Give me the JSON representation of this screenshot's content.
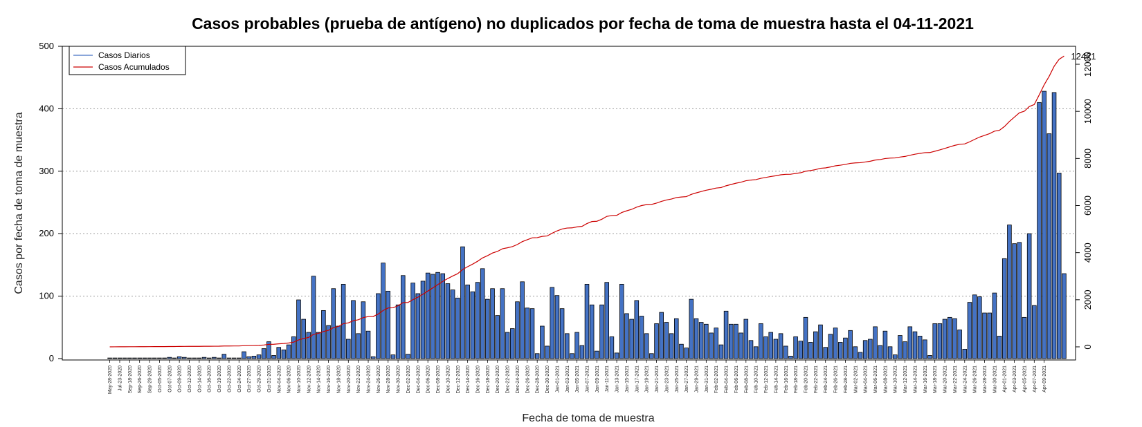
{
  "chart_data": {
    "type": "bar",
    "title": "Casos probables (prueba de antígeno) no duplicados por fecha de toma de muestra hasta el 04-11-2021",
    "xlabel": "Fecha de toma de muestra",
    "ylabel": "Casos por fecha de toma de muestra",
    "ylim": [
      0,
      500
    ],
    "y_ticks": [
      0,
      100,
      200,
      300,
      400,
      500
    ],
    "y2lim": [
      -200,
      12800
    ],
    "y2_ticks": [
      0,
      2000,
      4000,
      6000,
      8000,
      10000,
      12000
    ],
    "grid": "horizontal dotted",
    "legend_position": "top-left",
    "legend": [
      "Casos Diarios",
      "Casos Acumulados"
    ],
    "colors": {
      "bars": "#4472C4",
      "bar_border": "#000000",
      "line": "#CC0000",
      "grid": "#999999"
    },
    "end_label": "12421",
    "x_tick_labels": [
      "May-28-2020",
      "Jul-23-2020",
      "Sep-18-2020",
      "Sep-26-2020",
      "Sep-29-2020",
      "Oct-05-2020",
      "Oct-07-2020",
      "Oct-09-2020",
      "Oct-12-2020",
      "Oct-14-2020",
      "Oct-16-2020",
      "Oct-19-2020",
      "Oct-22-2020",
      "Oct-24-2020",
      "Oct-27-2020",
      "Oct-29-2020",
      "Oct-31-2020",
      "Nov-04-2020",
      "Nov-06-2020",
      "Nov-10-2020",
      "Nov-12-2020",
      "Nov-14-2020",
      "Nov-16-2020",
      "Nov-18-2020",
      "Nov-20-2020",
      "Nov-22-2020",
      "Nov-24-2020",
      "Nov-26-2020",
      "Nov-28-2020",
      "Nov-30-2020",
      "Dec-02-2020",
      "Dec-04-2020",
      "Dec-06-2020",
      "Dec-08-2020",
      "Dec-10-2020",
      "Dec-12-2020",
      "Dec-14-2020",
      "Dec-16-2020",
      "Dec-18-2020",
      "Dec-20-2020",
      "Dec-22-2020",
      "Dec-24-2020",
      "Dec-26-2020",
      "Dec-28-2020",
      "Dec-30-2020",
      "Jan-01-2021",
      "Jan-03-2021",
      "Jan-05-2021",
      "Jan-07-2021",
      "Jan-09-2021",
      "Jan-11-2021",
      "Jan-13-2021",
      "Jan-15-2021",
      "Jan-17-2021",
      "Jan-19-2021",
      "Jan-21-2021",
      "Jan-23-2021",
      "Jan-25-2021",
      "Jan-27-2021",
      "Jan-29-2021",
      "Jan-31-2021",
      "Feb-02-2021",
      "Feb-04-2021",
      "Feb-06-2021",
      "Feb-08-2021",
      "Feb-10-2021",
      "Feb-12-2021",
      "Feb-14-2021",
      "Feb-16-2021",
      "Feb-18-2021",
      "Feb-20-2021",
      "Feb-22-2021",
      "Feb-24-2021",
      "Feb-26-2021",
      "Feb-28-2021",
      "Mar-02-2021",
      "Mar-04-2021",
      "Mar-06-2021",
      "Mar-08-2021",
      "Mar-10-2021",
      "Mar-12-2021",
      "Mar-14-2021",
      "Mar-16-2021",
      "Mar-18-2021",
      "Mar-20-2021",
      "Mar-22-2021",
      "Mar-24-2021",
      "Mar-26-2021",
      "Mar-28-2021",
      "Mar-30-2021",
      "Apr-01-2021",
      "Apr-03-2021",
      "Apr-05-2021",
      "Apr-07-2021",
      "Apr-09-2021"
    ],
    "daily": [
      1,
      1,
      1,
      1,
      1,
      1,
      1,
      1,
      1,
      1,
      1,
      1,
      2,
      1,
      3,
      2,
      1,
      1,
      1,
      2,
      1,
      2,
      1,
      7,
      1,
      1,
      1,
      11,
      3,
      4,
      6,
      16,
      27,
      5,
      18,
      14,
      22,
      35,
      94,
      63,
      42,
      132,
      42,
      77,
      53,
      112,
      52,
      119,
      31,
      93,
      40,
      91,
      44,
      3,
      104,
      153,
      108,
      6,
      86,
      133,
      7,
      121,
      104,
      124,
      137,
      135,
      138,
      136,
      120,
      110,
      97,
      179,
      118,
      107,
      122,
      144,
      95,
      112,
      69,
      112,
      42,
      48,
      91,
      123,
      81,
      80,
      8,
      52,
      20,
      114,
      101,
      80,
      40,
      8,
      42,
      21,
      119,
      86,
      12,
      86,
      122,
      35,
      9,
      119,
      72,
      63,
      93,
      68,
      40,
      8,
      56,
      74,
      58,
      40,
      64,
      23,
      17,
      95,
      64,
      58,
      55,
      41,
      49,
      22,
      76,
      55,
      55,
      41,
      63,
      29,
      19,
      56,
      35,
      42,
      31,
      40,
      20,
      4,
      35,
      28,
      66,
      26,
      43,
      54,
      18,
      39,
      49,
      26,
      33,
      45,
      19,
      10,
      29,
      31,
      51,
      21,
      44,
      19,
      6,
      37,
      27,
      51,
      43,
      36,
      30,
      5,
      56,
      56,
      63,
      66,
      64,
      46,
      15,
      90,
      102,
      99,
      73,
      73,
      105,
      36,
      160,
      214,
      184,
      186,
      66,
      200,
      85,
      410,
      428,
      360,
      426,
      297,
      136
    ]
  }
}
